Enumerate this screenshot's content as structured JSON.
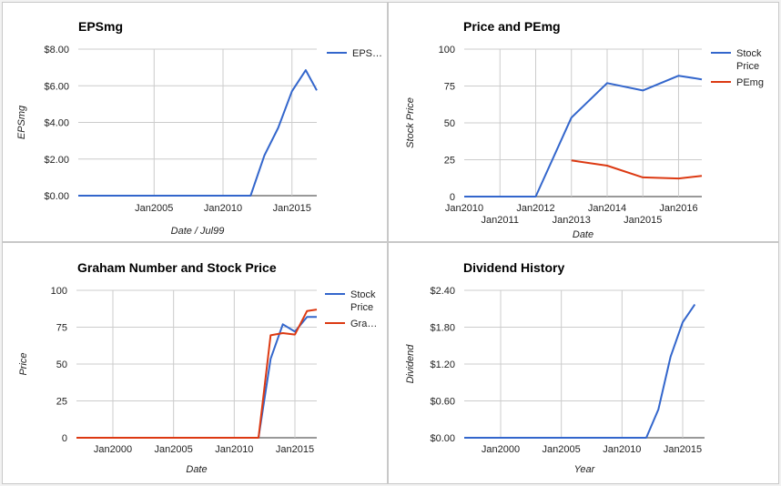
{
  "chart_data": [
    {
      "type": "line",
      "title": "EPSmg",
      "xlabel": "Date / Jul99",
      "ylabel": "EPSmg",
      "x_ticks": [
        {
          "label": "Jan2005",
          "x": 2005
        },
        {
          "label": "Jan2010",
          "x": 2010
        },
        {
          "label": "Jan2015",
          "x": 2015
        }
      ],
      "y_ticks": [
        "$0.00",
        "$2.00",
        "$4.00",
        "$6.00",
        "$8.00"
      ],
      "xlim": [
        1999.5,
        2016.8
      ],
      "ylim": [
        0,
        8
      ],
      "legend_position": "right",
      "grid": true,
      "series": [
        {
          "name": "EPS…",
          "color": "#3366cc",
          "x": [
            1999.5,
            2012,
            2013,
            2014,
            2015,
            2016,
            2016.8
          ],
          "y": [
            0,
            0,
            2.2,
            3.7,
            5.7,
            6.85,
            5.75
          ]
        }
      ]
    },
    {
      "type": "line",
      "title": "Price and PEmg",
      "xlabel": "Date",
      "ylabel": "Stock Price",
      "x_ticks_row1": [
        {
          "label": "Jan2010",
          "x": 2010
        },
        {
          "label": "Jan2012",
          "x": 2012
        },
        {
          "label": "Jan2014",
          "x": 2014
        },
        {
          "label": "Jan2016",
          "x": 2016
        }
      ],
      "x_ticks_row2": [
        {
          "label": "Jan2011",
          "x": 2011
        },
        {
          "label": "Jan2013",
          "x": 2013
        },
        {
          "label": "Jan2015",
          "x": 2015
        }
      ],
      "y_ticks": [
        "0",
        "25",
        "50",
        "75",
        "100"
      ],
      "xlim": [
        2010,
        2016.65
      ],
      "ylim": [
        0,
        100
      ],
      "legend_position": "right",
      "grid": true,
      "series": [
        {
          "name_lines": [
            "Stock",
            "Price"
          ],
          "color": "#3366cc",
          "x": [
            2010,
            2012,
            2013,
            2014,
            2015,
            2016,
            2016.65
          ],
          "y": [
            0,
            0,
            53.5,
            77,
            72,
            82,
            79.5
          ]
        },
        {
          "name": "PEmg",
          "color": "#dc3912",
          "x": [
            2013,
            2014,
            2015,
            2016,
            2016.65
          ],
          "y": [
            24.5,
            21,
            13,
            12.3,
            14
          ]
        }
      ]
    },
    {
      "type": "line",
      "title": "Graham Number and Stock Price",
      "xlabel": "Date",
      "ylabel": "Price",
      "x_ticks": [
        {
          "label": "Jan2000",
          "x": 2000
        },
        {
          "label": "Jan2005",
          "x": 2005
        },
        {
          "label": "Jan2010",
          "x": 2010
        },
        {
          "label": "Jan2015",
          "x": 2015
        }
      ],
      "y_ticks": [
        "0",
        "25",
        "50",
        "75",
        "100"
      ],
      "xlim": [
        1997,
        2016.8
      ],
      "ylim": [
        0,
        100
      ],
      "legend_position": "right",
      "grid": true,
      "series": [
        {
          "name_lines": [
            "Stock",
            "Price"
          ],
          "color": "#3366cc",
          "x": [
            1997,
            2012,
            2013,
            2014,
            2015,
            2016,
            2016.8
          ],
          "y": [
            0,
            0,
            53.5,
            77,
            72,
            82,
            82
          ]
        },
        {
          "name": "Gra…",
          "color": "#dc3912",
          "x": [
            1997,
            2012,
            2013,
            2014,
            2015,
            2016,
            2016.8
          ],
          "y": [
            0,
            0,
            69.5,
            71,
            70,
            86,
            87
          ]
        }
      ]
    },
    {
      "type": "line",
      "title": "Dividend History",
      "xlabel": "Year",
      "ylabel": "Dividend",
      "x_ticks": [
        {
          "label": "Jan2000",
          "x": 2000
        },
        {
          "label": "Jan2005",
          "x": 2005
        },
        {
          "label": "Jan2010",
          "x": 2010
        },
        {
          "label": "Jan2015",
          "x": 2015
        }
      ],
      "y_ticks": [
        "$0.00",
        "$0.60",
        "$1.20",
        "$1.80",
        "$2.40"
      ],
      "xlim": [
        1997,
        2016.8
      ],
      "ylim": [
        0,
        2.4
      ],
      "legend_position": "none",
      "grid": true,
      "series": [
        {
          "color": "#3366cc",
          "x": [
            1997,
            2012,
            2013,
            2014,
            2015,
            2016
          ],
          "y": [
            0,
            0,
            0.46,
            1.32,
            1.88,
            2.17
          ]
        }
      ]
    }
  ]
}
